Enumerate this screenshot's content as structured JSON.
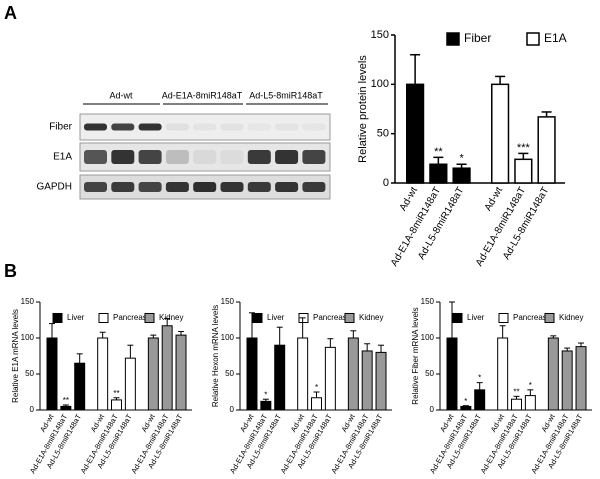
{
  "panel_labels": [
    "A",
    "B"
  ],
  "blot": {
    "groups": [
      "Ad-wt",
      "Ad-E1A-8miR148aT",
      "Ad-L5-8miR148aT"
    ],
    "rows": [
      "Fiber",
      "E1A",
      "GAPDH"
    ]
  },
  "chart_data": [
    {
      "type": "bar",
      "ylabel": "Relative protein levels",
      "ylim": [
        0,
        150
      ],
      "yticks": [
        0,
        50,
        100,
        150
      ],
      "categories": [
        "Ad-wt",
        "Ad-E1A-8miR148aT",
        "Ad-L5-8miR148aT"
      ],
      "series": [
        {
          "name": "Fiber",
          "color": "#000000",
          "values": [
            100,
            19,
            15
          ],
          "errors": [
            30,
            7,
            4
          ],
          "annotations": [
            null,
            "**",
            "*"
          ]
        },
        {
          "name": "E1A",
          "color": "#ffffff",
          "values": [
            100,
            24,
            67
          ],
          "errors": [
            8,
            6,
            5
          ],
          "annotations": [
            null,
            "***",
            null
          ]
        }
      ]
    },
    {
      "type": "bar",
      "ylabel": "Relative E1A mRNA levels",
      "ylim": [
        0,
        150
      ],
      "yticks": [
        0,
        50,
        100,
        150
      ],
      "categories": [
        "Ad-wt",
        "Ad-E1A-8miR148aT",
        "Ad-L5-8miR148aT"
      ],
      "series": [
        {
          "name": "Liver",
          "color": "#000000",
          "values": [
            100,
            5,
            65
          ],
          "errors": [
            20,
            2,
            13
          ],
          "annotations": [
            null,
            "**",
            null
          ]
        },
        {
          "name": "Pancreas",
          "color": "#ffffff",
          "values": [
            100,
            14,
            72
          ],
          "errors": [
            8,
            3,
            18
          ],
          "annotations": [
            null,
            "**",
            null
          ]
        },
        {
          "name": "Kidney",
          "color": "#999999",
          "values": [
            100,
            117,
            104
          ],
          "errors": [
            4,
            10,
            5
          ],
          "annotations": [
            null,
            null,
            null
          ]
        }
      ]
    },
    {
      "type": "bar",
      "ylabel": "Relative Hexon mRNA levels",
      "ylim": [
        0,
        150
      ],
      "yticks": [
        0,
        50,
        100,
        150
      ],
      "categories": [
        "Ad-wt",
        "Ad-E1A-8miR148aT",
        "Ad-L5-8miR148aT"
      ],
      "series": [
        {
          "name": "Liver",
          "color": "#000000",
          "values": [
            100,
            12,
            90
          ],
          "errors": [
            35,
            3,
            25
          ],
          "annotations": [
            null,
            "*",
            null
          ]
        },
        {
          "name": "Pancreas",
          "color": "#ffffff",
          "values": [
            100,
            17,
            87
          ],
          "errors": [
            28,
            8,
            12
          ],
          "annotations": [
            null,
            "*",
            null
          ]
        },
        {
          "name": "Kidney",
          "color": "#999999",
          "values": [
            100,
            82,
            80
          ],
          "errors": [
            10,
            10,
            10
          ],
          "annotations": [
            null,
            null,
            null
          ]
        }
      ]
    },
    {
      "type": "bar",
      "ylabel": "Relative Fiber mRNA levels",
      "ylim": [
        0,
        150
      ],
      "yticks": [
        0,
        50,
        100,
        150
      ],
      "categories": [
        "Ad-wt",
        "Ad-E1A-8miR148aT",
        "Ad-L5-8miR148aT"
      ],
      "series": [
        {
          "name": "Liver",
          "color": "#000000",
          "values": [
            100,
            5,
            28
          ],
          "errors": [
            50,
            1,
            10
          ],
          "annotations": [
            null,
            "*",
            "*"
          ]
        },
        {
          "name": "Pancreas",
          "color": "#ffffff",
          "values": [
            100,
            15,
            20
          ],
          "errors": [
            17,
            4,
            8
          ],
          "annotations": [
            null,
            "**",
            "*"
          ]
        },
        {
          "name": "Kidney",
          "color": "#999999",
          "values": [
            100,
            82,
            88
          ],
          "errors": [
            3,
            4,
            5
          ],
          "annotations": [
            null,
            null,
            null
          ]
        }
      ]
    }
  ]
}
